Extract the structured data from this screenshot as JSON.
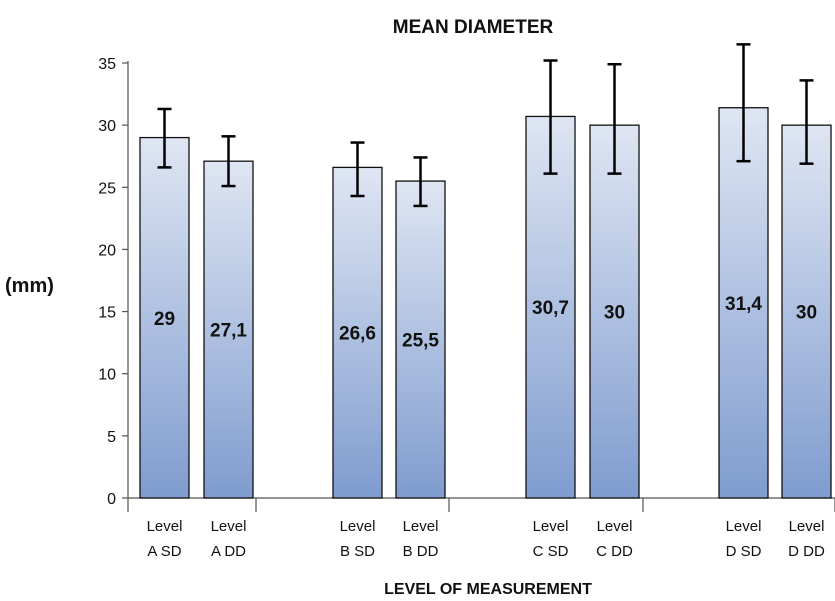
{
  "chart_data": {
    "type": "bar",
    "title": "MEAN DIAMETER",
    "xlabel": "LEVEL OF MEASUREMENT",
    "ylabel": "(mm)",
    "ylim": [
      0,
      35
    ],
    "yticks": [
      "0",
      "5",
      "10",
      "15",
      "20",
      "25",
      "30",
      "35"
    ],
    "grid": false,
    "categories": [
      [
        "Level",
        "A SD"
      ],
      [
        "Level",
        "A DD"
      ],
      [
        "Level",
        "B SD"
      ],
      [
        "Level",
        "B DD"
      ],
      [
        "Level",
        "C SD"
      ],
      [
        "Level",
        "C DD"
      ],
      [
        "Level",
        "D SD"
      ],
      [
        "Level",
        "D DD"
      ]
    ],
    "values": [
      29,
      27.1,
      26.6,
      25.5,
      30.7,
      30,
      31.4,
      30
    ],
    "value_labels": [
      "29",
      "27,1",
      "26,6",
      "25,5",
      "30,7",
      "30",
      "31,4",
      "30"
    ],
    "error_low": [
      26.6,
      25.1,
      24.3,
      23.5,
      26.1,
      26.1,
      27.1,
      26.9
    ],
    "error_high": [
      31.3,
      29.1,
      28.6,
      27.4,
      35.2,
      34.9,
      36.5,
      33.6
    ],
    "bar_color_top": "#dfe6f3",
    "bar_color_bottom": "#7f9ccf",
    "bar_stroke": "#111111"
  }
}
